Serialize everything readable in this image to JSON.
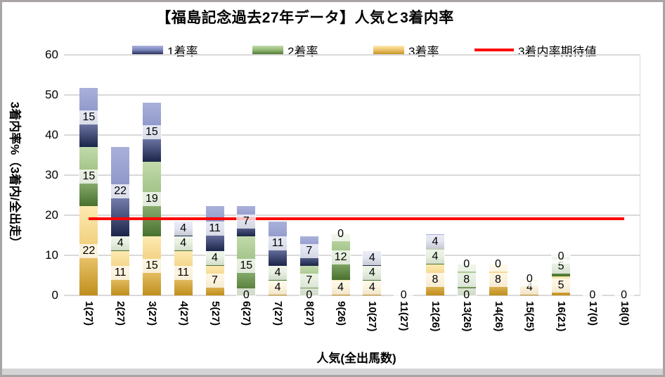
{
  "chart": {
    "title": "【福島記念過去27年データ】人気と3着内率",
    "x_axis_title": "人気(全出馬数)",
    "y_axis_title": "3着内率%（3着内/全出走）",
    "legend": [
      {
        "label": "1着率",
        "kind": "swatch",
        "color": "#3c4784"
      },
      {
        "label": "2着率",
        "kind": "swatch",
        "color": "#6f9a4f"
      },
      {
        "label": "3着率",
        "kind": "swatch",
        "color": "#d8ac3f"
      },
      {
        "label": "3着内率期待値",
        "kind": "line",
        "color": "#ff0000"
      }
    ]
  },
  "chart_data": {
    "type": "bar",
    "stacked": true,
    "title": "【福島記念過去27年データ】人気と3着内率",
    "xlabel": "人気(全出馬数)",
    "ylabel": "3着内率%（3着内/全出走）",
    "ylim": [
      0,
      60
    ],
    "yticks": [
      0,
      10,
      20,
      30,
      40,
      50,
      60
    ],
    "grid": true,
    "legend_position": "top",
    "categories": [
      "1(27)",
      "2(27)",
      "3(27)",
      "4(27)",
      "5(27)",
      "6(27)",
      "7(27)",
      "8(27)",
      "9(26)",
      "10(27)",
      "11(27)",
      "12(26)",
      "13(26)",
      "14(26)",
      "15(25)",
      "16(21)",
      "17(0)",
      "18(0)"
    ],
    "series": [
      {
        "name": "3着率",
        "key": "rate3",
        "color_light": "#fdeab2",
        "color_dark": "#bf8e1d",
        "values": [
          22.2,
          11.1,
          14.8,
          11.1,
          7.4,
          0,
          3.7,
          0,
          3.8,
          3.7,
          0,
          7.7,
          0,
          7.7,
          4.0,
          4.8,
          0,
          0
        ],
        "labels": [
          "22",
          "11",
          "15",
          "11",
          "7",
          "0",
          "4",
          "0",
          "4",
          "4",
          "0",
          "8",
          "0",
          "8",
          "4",
          "5",
          "0",
          "0"
        ]
      },
      {
        "name": "2着率",
        "key": "rate2",
        "color_light": "#c2daab",
        "color_dark": "#48702e",
        "values": [
          14.8,
          3.7,
          18.5,
          3.7,
          3.7,
          14.8,
          3.7,
          7.4,
          11.5,
          3.7,
          0,
          3.8,
          7.7,
          0,
          0,
          4.8,
          0,
          0
        ],
        "labels": [
          "15",
          "4",
          "19",
          "4",
          "4",
          "15",
          "4",
          "7",
          "12",
          "4",
          "",
          "4",
          "8",
          "0",
          "0",
          "5",
          "",
          ""
        ]
      },
      {
        "name": "1着率",
        "key": "rate1",
        "color_light": "#a9b1da",
        "color_dark": "#1b2448",
        "values": [
          14.8,
          22.2,
          14.8,
          3.7,
          11.1,
          7.4,
          11.1,
          7.4,
          0,
          3.7,
          0,
          3.8,
          0,
          0,
          0,
          0,
          0,
          0
        ],
        "labels": [
          "15",
          "22",
          "15",
          "4",
          "11",
          "7",
          "11",
          "7",
          "0",
          "4",
          "",
          "4",
          "0",
          "",
          "",
          "0",
          "",
          ""
        ]
      }
    ],
    "expected_line": {
      "name": "3着内率期待値",
      "value": 19.2,
      "color": "#ff0000"
    }
  }
}
